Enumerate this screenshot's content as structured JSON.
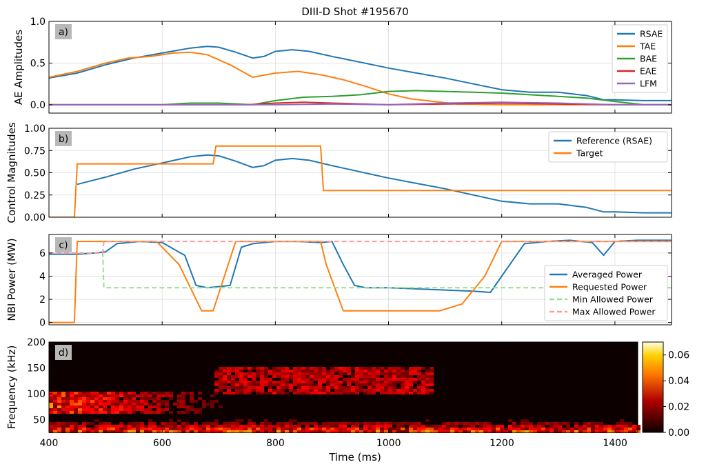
{
  "figure": {
    "title": "DIII-D Shot #195670",
    "xlabel": "Time (ms)"
  },
  "chart_data": [
    {
      "type": "line",
      "panel": "a)",
      "ylabel": "AE Amplitudes",
      "xlim": [
        400,
        1500
      ],
      "ylim": [
        -0.1,
        1.0
      ],
      "xticks": [
        "400",
        "600",
        "800",
        "1000",
        "1200",
        "1400"
      ],
      "yticks": [
        "0.0",
        "0.5",
        "1.0"
      ],
      "grid": true,
      "legend": "top-right",
      "series": [
        {
          "name": "RSAE",
          "color": "#1f77b4",
          "x": [
            400,
            450,
            500,
            550,
            600,
            650,
            680,
            700,
            730,
            760,
            780,
            800,
            830,
            860,
            900,
            950,
            1000,
            1050,
            1100,
            1150,
            1200,
            1250,
            1300,
            1350,
            1380,
            1400,
            1450,
            1500
          ],
          "y": [
            0.32,
            0.38,
            0.48,
            0.56,
            0.62,
            0.68,
            0.7,
            0.69,
            0.63,
            0.56,
            0.58,
            0.64,
            0.66,
            0.64,
            0.58,
            0.51,
            0.44,
            0.38,
            0.32,
            0.25,
            0.18,
            0.15,
            0.15,
            0.11,
            0.06,
            0.06,
            0.05,
            0.05
          ]
        },
        {
          "name": "TAE",
          "color": "#ff7f0e",
          "x": [
            400,
            450,
            500,
            540,
            580,
            620,
            650,
            680,
            720,
            760,
            800,
            840,
            880,
            920,
            960,
            1000,
            1040,
            1080,
            1120,
            1200,
            1300,
            1400,
            1500
          ],
          "y": [
            0.33,
            0.4,
            0.5,
            0.56,
            0.58,
            0.62,
            0.63,
            0.6,
            0.48,
            0.33,
            0.38,
            0.4,
            0.36,
            0.3,
            0.22,
            0.13,
            0.07,
            0.04,
            0.01,
            0.0,
            0.0,
            0.0,
            0.0
          ]
        },
        {
          "name": "BAE",
          "color": "#2ca02c",
          "x": [
            400,
            600,
            650,
            700,
            760,
            800,
            850,
            900,
            950,
            1000,
            1050,
            1100,
            1150,
            1200,
            1250,
            1300,
            1350,
            1400,
            1450,
            1500
          ],
          "y": [
            0.0,
            0.0,
            0.02,
            0.02,
            0.0,
            0.05,
            0.09,
            0.1,
            0.12,
            0.16,
            0.17,
            0.16,
            0.15,
            0.14,
            0.12,
            0.1,
            0.08,
            0.04,
            0.0,
            0.0
          ]
        },
        {
          "name": "EAE",
          "color": "#d62728",
          "x": [
            400,
            750,
            800,
            850,
            900,
            950,
            1000,
            1100,
            1200,
            1300,
            1400,
            1500
          ],
          "y": [
            0.0,
            0.0,
            0.02,
            0.03,
            0.02,
            0.01,
            0.0,
            0.01,
            0.02,
            0.01,
            0.0,
            0.0
          ]
        },
        {
          "name": "LFM",
          "color": "#9467bd",
          "x": [
            400,
            800,
            900,
            1000,
            1100,
            1200,
            1300,
            1400,
            1500
          ],
          "y": [
            0.0,
            0.0,
            0.01,
            0.0,
            0.02,
            0.03,
            0.02,
            0.0,
            0.0
          ]
        }
      ]
    },
    {
      "type": "line",
      "panel": "b)",
      "ylabel": "Control Magnitudes",
      "xlim": [
        400,
        1500
      ],
      "ylim": [
        0.0,
        1.0
      ],
      "xticks": [
        "400",
        "600",
        "800",
        "1000",
        "1200",
        "1400"
      ],
      "yticks": [
        "0.00",
        "0.25",
        "0.50",
        "0.75",
        "1.00"
      ],
      "grid": true,
      "legend": "top-right",
      "series": [
        {
          "name": "Reference (RSAE)",
          "color": "#1f77b4",
          "x": [
            450,
            500,
            550,
            600,
            650,
            680,
            700,
            730,
            760,
            780,
            800,
            830,
            860,
            900,
            950,
            1000,
            1050,
            1100,
            1150,
            1200,
            1250,
            1300,
            1350,
            1380,
            1400,
            1450,
            1500
          ],
          "y": [
            0.37,
            0.45,
            0.54,
            0.61,
            0.68,
            0.7,
            0.69,
            0.63,
            0.56,
            0.58,
            0.64,
            0.66,
            0.64,
            0.58,
            0.51,
            0.44,
            0.38,
            0.32,
            0.25,
            0.18,
            0.15,
            0.15,
            0.11,
            0.06,
            0.06,
            0.05,
            0.05
          ]
        },
        {
          "name": "Target",
          "color": "#ff7f0e",
          "x": [
            400,
            445,
            450,
            690,
            695,
            880,
            885,
            1500
          ],
          "y": [
            0.0,
            0.0,
            0.6,
            0.6,
            0.8,
            0.8,
            0.3,
            0.3
          ]
        }
      ]
    },
    {
      "type": "line",
      "panel": "c)",
      "ylabel": "NBI Power (MW)",
      "xlim": [
        400,
        1500
      ],
      "ylim": [
        -0.2,
        7.6
      ],
      "xticks": [
        "400",
        "600",
        "800",
        "1000",
        "1200",
        "1400"
      ],
      "yticks": [
        "0",
        "2",
        "4",
        "6"
      ],
      "grid": true,
      "legend": "bottom-right",
      "series": [
        {
          "name": "Averaged Power",
          "color": "#1f77b4",
          "x": [
            400,
            450,
            480,
            500,
            520,
            560,
            600,
            640,
            660,
            680,
            700,
            720,
            740,
            760,
            800,
            840,
            880,
            900,
            920,
            940,
            960,
            1000,
            1050,
            1100,
            1150,
            1180,
            1200,
            1240,
            1280,
            1320,
            1360,
            1380,
            1400,
            1440,
            1500
          ],
          "y": [
            5.9,
            5.9,
            6.0,
            6.1,
            6.8,
            7.0,
            6.9,
            5.8,
            3.2,
            3.0,
            3.1,
            3.2,
            6.5,
            6.8,
            7.0,
            7.0,
            6.9,
            7.0,
            5.0,
            3.2,
            3.0,
            3.0,
            2.9,
            2.8,
            2.7,
            2.6,
            4.0,
            6.8,
            7.0,
            7.1,
            6.9,
            5.8,
            7.0,
            7.1,
            7.1
          ]
        },
        {
          "name": "Requested Power",
          "color": "#ff7f0e",
          "x": [
            400,
            445,
            450,
            590,
            630,
            670,
            690,
            730,
            790,
            880,
            890,
            920,
            960,
            1000,
            1090,
            1130,
            1170,
            1200,
            1220,
            1500
          ],
          "y": [
            0.0,
            0.0,
            7.0,
            7.0,
            5.0,
            1.0,
            1.0,
            7.0,
            7.0,
            7.0,
            5.0,
            1.0,
            1.0,
            1.0,
            1.0,
            1.6,
            4.0,
            7.0,
            7.0,
            7.0
          ]
        },
        {
          "name": "Min Allowed Power",
          "color": "#98df8a",
          "dash": true,
          "x": [
            400,
            495,
            497,
            1500
          ],
          "y": [
            6.0,
            6.0,
            3.0,
            3.0
          ]
        },
        {
          "name": "Max Allowed Power",
          "color": "#ff9896",
          "dash": true,
          "x": [
            400,
            495,
            497,
            1500
          ],
          "y": [
            6.0,
            6.0,
            7.0,
            7.0
          ]
        }
      ]
    },
    {
      "type": "heatmap",
      "panel": "d)",
      "ylabel": "Frequency (kHz)",
      "xlim": [
        400,
        1440
      ],
      "ylim": [
        25,
        200
      ],
      "xticks": [
        "400",
        "600",
        "800",
        "1000",
        "1200",
        "1400"
      ],
      "yticks": [
        "50",
        "100",
        "150",
        "200"
      ],
      "colorbar": {
        "min": 0.0,
        "max": 0.07,
        "ticks": [
          "0.00",
          "0.02",
          "0.04",
          "0.06"
        ],
        "colormap": "hot"
      }
    }
  ]
}
